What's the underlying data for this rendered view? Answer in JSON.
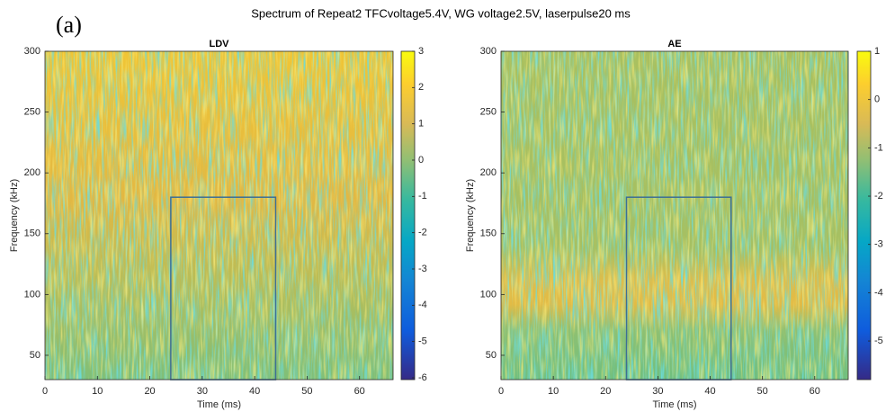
{
  "panel_label": "(a)",
  "title": "Spectrum of Repeat2 TFCvoltage5.4V, WG voltage2.5V, laserpulse20 ms",
  "chart_data": [
    {
      "type": "heatmap",
      "title": "LDV",
      "x_label": "Time (ms)",
      "y_label": "Frequency (kHz)",
      "xlim": [
        0,
        66.4
      ],
      "ylim": [
        30,
        300
      ],
      "xticks": [
        0,
        10,
        20,
        30,
        40,
        50,
        60
      ],
      "yticks": [
        50,
        100,
        150,
        200,
        250,
        300
      ],
      "colormap": "parula",
      "clim": [
        -6.05,
        3
      ],
      "cticks": [
        3,
        2,
        1,
        0,
        -1,
        -2,
        -3,
        -4,
        -5,
        -6
      ],
      "box": {
        "x": [
          24,
          44
        ],
        "y": [
          30,
          180
        ],
        "color": "#3d6f95"
      }
    },
    {
      "type": "heatmap",
      "title": "AE",
      "x_label": "Time (ms)",
      "y_label": "Frequency (kHz)",
      "xlim": [
        0,
        66.4
      ],
      "ylim": [
        30,
        300
      ],
      "xticks": [
        0,
        10,
        20,
        30,
        40,
        50,
        60
      ],
      "yticks": [
        50,
        100,
        150,
        200,
        250,
        300
      ],
      "colormap": "parula",
      "clim": [
        -5.8,
        1
      ],
      "cticks": [
        1,
        0,
        -1,
        -2,
        -3,
        -4,
        -5
      ],
      "box": {
        "x": [
          24,
          44
        ],
        "y": [
          30,
          180
        ],
        "color": "#3d6f95"
      }
    }
  ]
}
